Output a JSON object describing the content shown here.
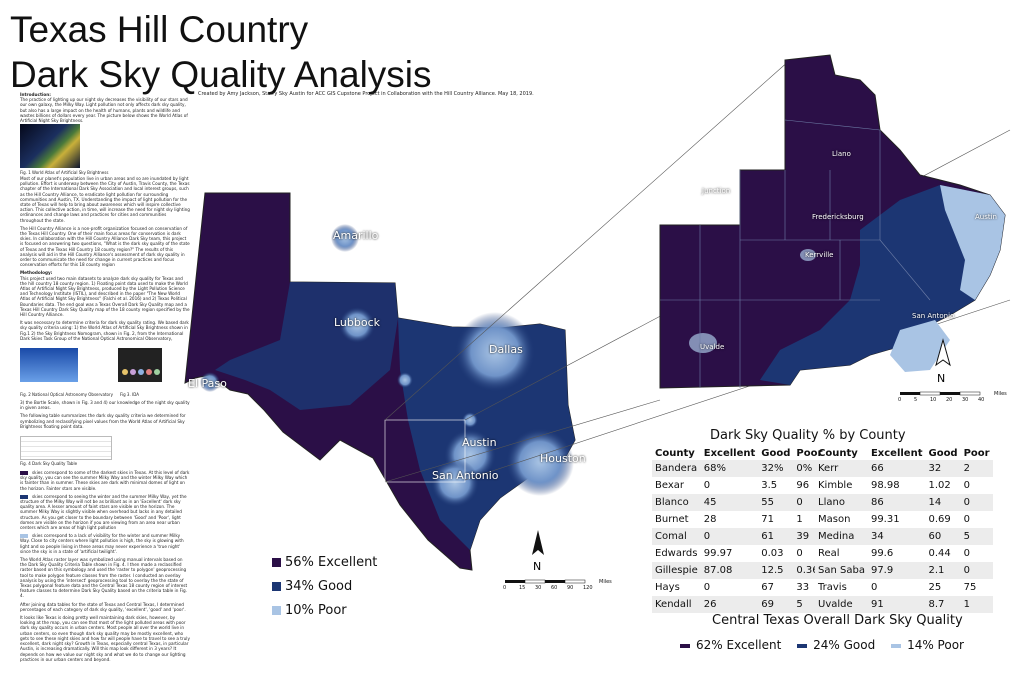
{
  "title_line1": "Texas Hill Country",
  "title_line2": "Dark Sky Quality Analysis",
  "credit": "Created by Amy Jackson, Starry Sky Austin for ACC GIS Cupstone Project in Collaboration with the Hill Country Alliance. May 18, 2019.",
  "intro_heading": "Introduction:",
  "intro_p1": "The practice of lighting up our night sky decreases the visibility of our stars and our own galaxy, the Milky Way. Light pollution not only affects dark sky quality, but also has a large impact on the health of humans, plants and wildlife and wastes billions of dollars every year. The picture below shows the World Atlas of Artificial Night Sky Brightness.",
  "fig1_caption": "Fig. 1 World Atlas of Artificial Sky Brightness",
  "intro_p2": "Most of our planet's population live in urban areas and so are inundated by light pollution. Effort is underway between the City of Austin, Travis County, the Texas chapter of the International Dark Sky Association and local interest groups, such as the Hill Country Alliance, to eradicate light pollution for surrounding communities and Austin, TX. Understanding the impact of light pollution for the state of Texas will help to bring about awareness which will inspire collective action. This collective action, in time, will increase the need for night sky lighting ordinances and change laws and practices for cities and communities throughout the state.",
  "intro_p3": "The Hill Country Alliance is a non-profit organization focused on conservation of the Texas Hill Country. One of their main focus areas for conservation is dark skies. In collaboration with the Hill Country Alliance Dark Sky team, this project is focused on answering two questions, \"What is the dark sky quality of the state of Texas and the Texas Hill Country 18 county region?\" The results of this analysis will aid in the Hill Country Alliance's assessment of dark sky quality in order to communicate the need for change in current practices and focus conservation efforts for this 18 county region",
  "methodology_heading": "Methodology:",
  "methodology_p1": "This project used two main datasets to analyze dark sky quality for Texas and the hill country 18 county region. 1) Floating point data used to make the World Atlas of Artificial Night Sky Brightness, produced by the Light Pollution Science and Technology Institute (ISTIL), and described in the paper \"The New World Atlas of Artificial Night Sky Brightness\" (Falchi et al. 2016) and 2) Texas Political Boundaries data. The end goal was a Texas Overall Dark Sky Quality map and a Texas Hill Country Dark Sky Quality map of the 18 county region specified by the Hill Country Alliance.",
  "methodology_p2": "It was necessary to determine criteria for dark sky quality rating. We based dark sky quality criteria using: 1) the World Atlas of Artificial Sky Brightness shown in Fig.1 2) the Sky Brightness Nomogram, shown in Fig. 2, from the International Dark Skies Task Group of the National Optical Astronomical Observatory,",
  "fig2_caption": "Fig. 2 National Optical Astronomy Observatory",
  "fig3_caption": "Fig 3. IDA",
  "methodology_p3": "3) the Bortle Scale, shown in Fig. 3 and 4) our knowledge of the night sky quality in given areas.",
  "methodology_p4": "The following table summarizes the dark sky quality criteria we determined for symbolizing and reclassifying pixel values from the World Atlas of Artificial Sky Brightness floating point data.",
  "fig4_caption": "Fig. 4 Dark Sky Quality Table",
  "excellent_desc": "skies correspond to some of the darkest skies in Texas. At this level of dark sky quality, you can see the summer Milky Way and the winter Milky Way which is fainter than in summer. These skies are dark with minimal domes of light on the horizon. Fainter stars are visible.",
  "good_desc": "skies correspond to seeing the winter and the summer Milky Way, yet the structure of the Milky Way will not be as brilliant as in an 'Excellent' dark sky quality area. A lesser amount of faint stars are visible on the horizon. The summer Milky Way is slightly visible when overhead but lacks in any detailed structure. As you get closer to the boundary between 'Good' and 'Poor', light domes are visible on the horizon if you are viewing from an area near urban centers which are areas of high light pollution",
  "poor_desc": "skies correspond to a lack of visibility for the winter and summer Milky Way. Close to city centers where light pollution is high, the sky is glowing with light and so people living in these areas may never experience a 'true night' since the sky is in a state of 'artificial twilight'.",
  "methodology_p5": "The World Atlas raster layer was symbolized using manual intervals based on the Dark Sky Quality Criteria Table shown in Fig. 4. I then made a reclassified raster based on this symbology and used the 'raster to polygon' geoprocessing tool to make polygon feature classes from the raster. I conducted an overlay analysis by using the 'intersect' geoprocessing tool to overlay the the state of Texas polygonal feature data and the Central Texas 18 county region of interest feature classes to determine Dark Sky Quality based on the criteria table in Fig. 4.",
  "methodology_p6": "After joining data tables for the state of Texas and Central Texas, I determined percentages of each category of dark sky quality, 'excellent', 'good' and 'poor'.",
  "conclusion_p": "It looks like Texas is doing pretty well maintaining dark skies, however, by looking at the map, you can see that most of the light polluted areas with poor dark sky quality occurs in urban centers. Most people all over the world live in urban centers, so even though dark sky quality may be mostly excellent, who gets to see these night skies and how far will people have to travel to see a truly excellent, dark night sky? Growth in Texas, especially central Texas, in particular Austin, is increasing dramatically. Will this map look different in 3 years? It depends on how we value our night sky and what we do to change our lighting practices in our urban centers and beyond.",
  "texas_legend": [
    {
      "label": "56% Excellent",
      "color": "#2b0f47"
    },
    {
      "label": "34% Good",
      "color": "#1c3673"
    },
    {
      "label": "10% Poor",
      "color": "#a9c4e4"
    }
  ],
  "texas_cities": [
    "Amarillo",
    "Lubbock",
    "Dallas",
    "El Paso",
    "Austin",
    "Houston",
    "San Antonio"
  ],
  "hill_cities": [
    "Llano",
    "Junction",
    "Fredericksburg",
    "Austin",
    "Kerrville",
    "San Antonio",
    "Uvalde"
  ],
  "north_label": "N",
  "scale_texas": {
    "ticks": [
      "0",
      "15",
      "30",
      "60",
      "90",
      "120"
    ],
    "unit": "Miles"
  },
  "scale_hill": {
    "ticks": [
      "0",
      "5",
      "10",
      "20",
      "30",
      "40"
    ],
    "unit": "Miles"
  },
  "table_title": "Dark Sky Quality % by County",
  "table_headers": [
    "County",
    "Excellent",
    "Good",
    "Poor"
  ],
  "table_left": [
    [
      "Bandera",
      "68%",
      "32%",
      "0%"
    ],
    [
      "Bexar",
      "0",
      "3.5",
      "96"
    ],
    [
      "Blanco",
      "45",
      "55",
      "0"
    ],
    [
      "Burnet",
      "28",
      "71",
      "1"
    ],
    [
      "Comal",
      "0",
      "61",
      "39"
    ],
    [
      "Edwards",
      "99.97",
      "0.03",
      "0"
    ],
    [
      "Gillespie",
      "87.08",
      "12.5",
      "0.36"
    ],
    [
      "Hays",
      "0",
      "67",
      "33"
    ],
    [
      "Kendall",
      "26",
      "69",
      "5"
    ]
  ],
  "table_right": [
    [
      "Kerr",
      "66",
      "32",
      "2"
    ],
    [
      "Kimble",
      "98.98",
      "1.02",
      "0"
    ],
    [
      "Llano",
      "86",
      "14",
      "0"
    ],
    [
      "Mason",
      "99.31",
      "0.69",
      "0"
    ],
    [
      "Medina",
      "34",
      "60",
      "5"
    ],
    [
      "Real",
      "99.6",
      "0.44",
      "0"
    ],
    [
      "San Saba",
      "97.9",
      "2.1",
      "0"
    ],
    [
      "Travis",
      "0",
      "25",
      "75"
    ],
    [
      "Uvalde",
      "91",
      "8.7",
      "1"
    ]
  ],
  "overall_title": "Central Texas Overall Dark Sky Quality",
  "overall_legend": [
    {
      "label": "62% Excellent",
      "color": "#2b0f47"
    },
    {
      "label": "24% Good",
      "color": "#1c3673"
    },
    {
      "label": "14% Poor",
      "color": "#a9c4e4"
    }
  ]
}
